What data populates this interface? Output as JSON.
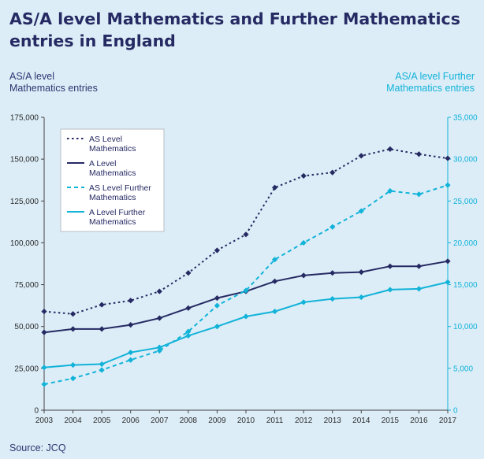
{
  "title_line1": "AS/A level Mathematics and Further Mathematics",
  "title_line2": "entries in England",
  "source": "Source: JCQ",
  "colors": {
    "navy": "#262a63",
    "cyan": "#12b3d9",
    "background": "#dcedf7"
  },
  "chart_data": {
    "type": "line",
    "left_axis_title_line1": "AS/A level",
    "left_axis_title_line2": "Mathematics entries",
    "right_axis_title_line1": "AS/A level Further",
    "right_axis_title_line2": "Mathematics entries",
    "x": [
      "2003",
      "2004",
      "2005",
      "2006",
      "2007",
      "2008",
      "2009",
      "2010",
      "2011",
      "2012",
      "2013",
      "2014",
      "2015",
      "2016",
      "2017"
    ],
    "ylim_left": [
      0,
      175000
    ],
    "ylim_right": [
      0,
      35000
    ],
    "yticks_left": [
      "0",
      "25,000",
      "50,000",
      "75,000",
      "100,000",
      "125,000",
      "150,000",
      "175,000"
    ],
    "yticks_right": [
      "0",
      "5,000",
      "10,000",
      "15,000",
      "20,000",
      "25,000",
      "30,000",
      "35,000"
    ],
    "legend_position": "top-left",
    "series": [
      {
        "name": "AS Level Mathematics",
        "axis": "left",
        "color": "#262a63",
        "style": "dotted",
        "marker": "diamond",
        "values": [
          59000,
          57500,
          63000,
          65500,
          71000,
          82000,
          95500,
          105000,
          133000,
          140000,
          142000,
          152000,
          156000,
          153000,
          150500
        ]
      },
      {
        "name": "A Level Mathematics",
        "axis": "left",
        "color": "#262a63",
        "style": "solid",
        "marker": "diamond",
        "values": [
          46500,
          48500,
          48500,
          51000,
          55000,
          61000,
          67000,
          71000,
          77000,
          80500,
          82000,
          82500,
          86000,
          86000,
          89000
        ]
      },
      {
        "name": "AS Level Further Mathematics",
        "axis": "right",
        "color": "#12b3d9",
        "style": "dashed",
        "marker": "diamond",
        "values": [
          3100,
          3800,
          4800,
          6000,
          7100,
          9400,
          12500,
          14300,
          18000,
          20000,
          21900,
          23800,
          26200,
          25800,
          26900
        ]
      },
      {
        "name": "A Level Further Mathematics",
        "axis": "right",
        "color": "#12b3d9",
        "style": "solid",
        "marker": "diamond",
        "values": [
          5100,
          5400,
          5500,
          6900,
          7500,
          8900,
          10000,
          11200,
          11800,
          12900,
          13300,
          13500,
          14400,
          14500,
          15300
        ]
      }
    ]
  }
}
